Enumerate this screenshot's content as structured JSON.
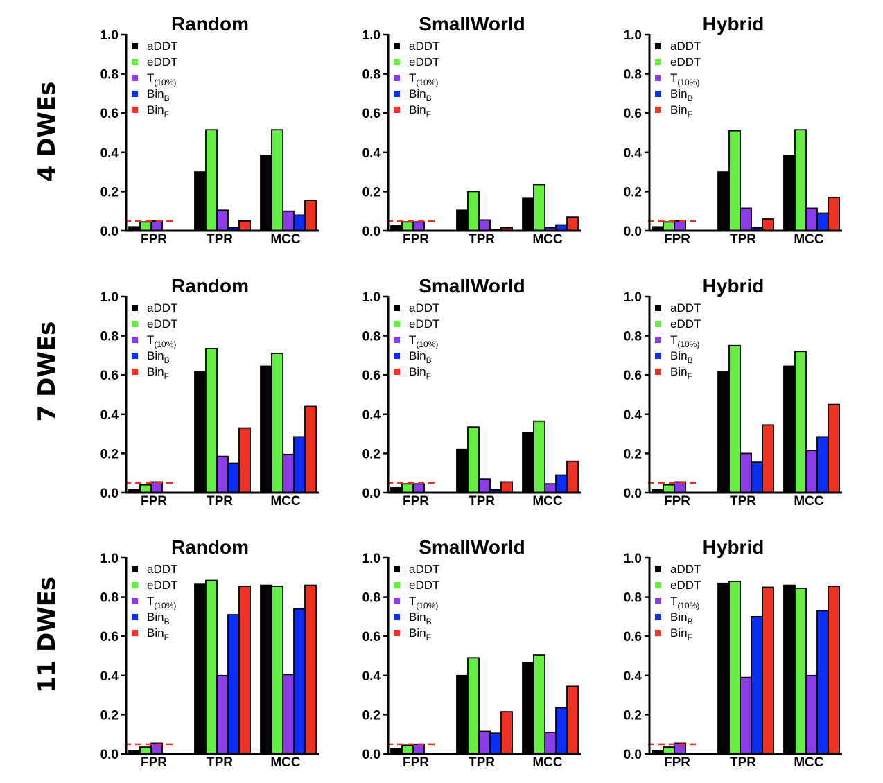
{
  "colors": {
    "aDDT": "#000000",
    "eDDT": "#66ee44",
    "T10": "#8c3ce6",
    "BinB": "#0a2ef5",
    "BinF": "#ee3322",
    "threshold": "#e8321e"
  },
  "legend": [
    {
      "key": "aDDT",
      "text": "aDDT",
      "sub": ""
    },
    {
      "key": "eDDT",
      "text": "eDDT",
      "sub": ""
    },
    {
      "key": "T10",
      "text": "T",
      "sub": "(10%)"
    },
    {
      "key": "BinB",
      "text": "Bin",
      "sub": "B"
    },
    {
      "key": "BinF",
      "text": "Bin",
      "sub": "F"
    }
  ],
  "row_labels": [
    "4 DWEs",
    "7 DWEs",
    "11 DWEs"
  ],
  "chart_data": [
    {
      "type": "bar",
      "title": "Random",
      "row": 0,
      "col": 0,
      "categories": [
        "FPR",
        "TPR",
        "MCC"
      ],
      "ylim": [
        0,
        1
      ],
      "yticks": [
        "0.0",
        "0.2",
        "0.4",
        "0.6",
        "0.8",
        "1.0"
      ],
      "threshold": 0.05,
      "series": [
        {
          "name": "aDDT",
          "values": [
            0.02,
            0.3,
            0.385
          ]
        },
        {
          "name": "eDDT",
          "values": [
            0.045,
            0.515,
            0.515
          ]
        },
        {
          "name": "T(10%)",
          "values": [
            0.05,
            0.105,
            0.1
          ]
        },
        {
          "name": "BinB",
          "values": [
            0.0,
            0.015,
            0.08
          ]
        },
        {
          "name": "BinF",
          "values": [
            0.0,
            0.05,
            0.155
          ]
        }
      ]
    },
    {
      "type": "bar",
      "title": "SmallWorld",
      "row": 0,
      "col": 1,
      "categories": [
        "FPR",
        "TPR",
        "MCC"
      ],
      "ylim": [
        0,
        1
      ],
      "yticks": [
        "0.0",
        "0.2",
        "0.4",
        "0.6",
        "0.8",
        "1.0"
      ],
      "threshold": 0.05,
      "series": [
        {
          "name": "aDDT",
          "values": [
            0.025,
            0.105,
            0.165
          ]
        },
        {
          "name": "eDDT",
          "values": [
            0.045,
            0.2,
            0.235
          ]
        },
        {
          "name": "T(10%)",
          "values": [
            0.045,
            0.055,
            0.015
          ]
        },
        {
          "name": "BinB",
          "values": [
            0.0,
            0.005,
            0.03
          ]
        },
        {
          "name": "BinF",
          "values": [
            0.0,
            0.015,
            0.07
          ]
        }
      ]
    },
    {
      "type": "bar",
      "title": "Hybrid",
      "row": 0,
      "col": 2,
      "categories": [
        "FPR",
        "TPR",
        "MCC"
      ],
      "ylim": [
        0,
        1
      ],
      "yticks": [
        "0.0",
        "0.2",
        "0.4",
        "0.6",
        "0.8",
        "1.0"
      ],
      "threshold": 0.05,
      "series": [
        {
          "name": "aDDT",
          "values": [
            0.02,
            0.3,
            0.385
          ]
        },
        {
          "name": "eDDT",
          "values": [
            0.045,
            0.51,
            0.515
          ]
        },
        {
          "name": "T(10%)",
          "values": [
            0.05,
            0.115,
            0.115
          ]
        },
        {
          "name": "BinB",
          "values": [
            0.0,
            0.015,
            0.09
          ]
        },
        {
          "name": "BinF",
          "values": [
            0.0,
            0.06,
            0.17
          ]
        }
      ]
    },
    {
      "type": "bar",
      "title": "Random",
      "row": 1,
      "col": 0,
      "categories": [
        "FPR",
        "TPR",
        "MCC"
      ],
      "ylim": [
        0,
        1
      ],
      "yticks": [
        "0.0",
        "0.2",
        "0.4",
        "0.6",
        "0.8",
        "1.0"
      ],
      "threshold": 0.05,
      "series": [
        {
          "name": "aDDT",
          "values": [
            0.015,
            0.615,
            0.645
          ]
        },
        {
          "name": "eDDT",
          "values": [
            0.04,
            0.735,
            0.71
          ]
        },
        {
          "name": "T(10%)",
          "values": [
            0.055,
            0.185,
            0.195
          ]
        },
        {
          "name": "BinB",
          "values": [
            0.0,
            0.15,
            0.285
          ]
        },
        {
          "name": "BinF",
          "values": [
            0.0,
            0.33,
            0.44
          ]
        }
      ]
    },
    {
      "type": "bar",
      "title": "SmallWorld",
      "row": 1,
      "col": 1,
      "categories": [
        "FPR",
        "TPR",
        "MCC"
      ],
      "ylim": [
        0,
        1
      ],
      "yticks": [
        "0.0",
        "0.2",
        "0.4",
        "0.6",
        "0.8",
        "1.0"
      ],
      "threshold": 0.05,
      "series": [
        {
          "name": "aDDT",
          "values": [
            0.025,
            0.22,
            0.305
          ]
        },
        {
          "name": "eDDT",
          "values": [
            0.045,
            0.335,
            0.365
          ]
        },
        {
          "name": "T(10%)",
          "values": [
            0.045,
            0.07,
            0.045
          ]
        },
        {
          "name": "BinB",
          "values": [
            0.0,
            0.015,
            0.09
          ]
        },
        {
          "name": "BinF",
          "values": [
            0.0,
            0.055,
            0.16
          ]
        }
      ]
    },
    {
      "type": "bar",
      "title": "Hybrid",
      "row": 1,
      "col": 2,
      "categories": [
        "FPR",
        "TPR",
        "MCC"
      ],
      "ylim": [
        0,
        1
      ],
      "yticks": [
        "0.0",
        "0.2",
        "0.4",
        "0.6",
        "0.8",
        "1.0"
      ],
      "threshold": 0.05,
      "series": [
        {
          "name": "aDDT",
          "values": [
            0.015,
            0.615,
            0.645
          ]
        },
        {
          "name": "eDDT",
          "values": [
            0.04,
            0.75,
            0.72
          ]
        },
        {
          "name": "T(10%)",
          "values": [
            0.055,
            0.2,
            0.215
          ]
        },
        {
          "name": "BinB",
          "values": [
            0.0,
            0.155,
            0.285
          ]
        },
        {
          "name": "BinF",
          "values": [
            0.0,
            0.345,
            0.45
          ]
        }
      ]
    },
    {
      "type": "bar",
      "title": "Random",
      "row": 2,
      "col": 0,
      "categories": [
        "FPR",
        "TPR",
        "MCC"
      ],
      "ylim": [
        0,
        1
      ],
      "yticks": [
        "0.0",
        "0.2",
        "0.4",
        "0.6",
        "0.8",
        "1.0"
      ],
      "threshold": 0.05,
      "series": [
        {
          "name": "aDDT",
          "values": [
            0.015,
            0.865,
            0.86
          ]
        },
        {
          "name": "eDDT",
          "values": [
            0.035,
            0.885,
            0.855
          ]
        },
        {
          "name": "T(10%)",
          "values": [
            0.055,
            0.4,
            0.405
          ]
        },
        {
          "name": "BinB",
          "values": [
            0.0,
            0.71,
            0.74
          ]
        },
        {
          "name": "BinF",
          "values": [
            0.0,
            0.855,
            0.86
          ]
        }
      ]
    },
    {
      "type": "bar",
      "title": "SmallWorld",
      "row": 2,
      "col": 1,
      "categories": [
        "FPR",
        "TPR",
        "MCC"
      ],
      "ylim": [
        0,
        1
      ],
      "yticks": [
        "0.0",
        "0.2",
        "0.4",
        "0.6",
        "0.8",
        "1.0"
      ],
      "threshold": 0.05,
      "series": [
        {
          "name": "aDDT",
          "values": [
            0.025,
            0.4,
            0.465
          ]
        },
        {
          "name": "eDDT",
          "values": [
            0.045,
            0.49,
            0.505
          ]
        },
        {
          "name": "T(10%)",
          "values": [
            0.05,
            0.115,
            0.11
          ]
        },
        {
          "name": "BinB",
          "values": [
            0.0,
            0.105,
            0.235
          ]
        },
        {
          "name": "BinF",
          "values": [
            0.0,
            0.215,
            0.345
          ]
        }
      ]
    },
    {
      "type": "bar",
      "title": "Hybrid",
      "row": 2,
      "col": 2,
      "categories": [
        "FPR",
        "TPR",
        "MCC"
      ],
      "ylim": [
        0,
        1
      ],
      "yticks": [
        "0.0",
        "0.2",
        "0.4",
        "0.6",
        "0.8",
        "1.0"
      ],
      "threshold": 0.05,
      "series": [
        {
          "name": "aDDT",
          "values": [
            0.015,
            0.87,
            0.86
          ]
        },
        {
          "name": "eDDT",
          "values": [
            0.035,
            0.88,
            0.845
          ]
        },
        {
          "name": "T(10%)",
          "values": [
            0.055,
            0.39,
            0.4
          ]
        },
        {
          "name": "BinB",
          "values": [
            0.0,
            0.7,
            0.73
          ]
        },
        {
          "name": "BinF",
          "values": [
            0.0,
            0.85,
            0.855
          ]
        }
      ]
    }
  ]
}
